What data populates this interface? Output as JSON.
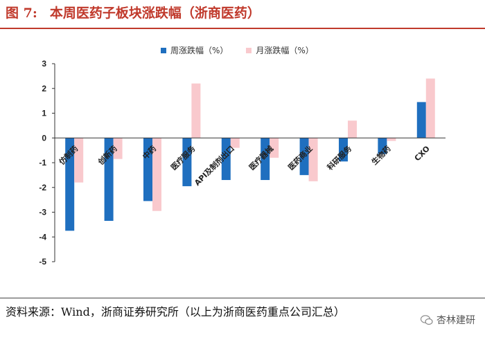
{
  "figure": {
    "number": "图 7:",
    "title": "本周医药子板块涨跌幅（浙商医药）"
  },
  "source_note": "资料来源：Wind，浙商证券研究所（以上为浙商医药重点公司汇总）",
  "watermark": "杏林建研",
  "colors": {
    "weekly": "#1f6fbf",
    "monthly": "#f9c9cd",
    "title": "#c0392b"
  },
  "chart_data": {
    "type": "bar",
    "title": "本周医药子板块涨跌幅（浙商医药）",
    "categories": [
      "仿制药",
      "创新药",
      "中药",
      "医疗服务",
      "API及制剂出口",
      "医疗器械",
      "医药商业",
      "科研服务",
      "生物药",
      "CXO"
    ],
    "series": [
      {
        "name": "周涨跌幅（%）",
        "values": [
          -3.75,
          -3.35,
          -2.55,
          -1.95,
          -1.7,
          -1.7,
          -1.5,
          -0.95,
          -0.65,
          1.45
        ]
      },
      {
        "name": "月涨跌幅（%）",
        "values": [
          -1.8,
          -0.85,
          -2.95,
          2.2,
          -0.4,
          -0.8,
          -1.75,
          0.7,
          -0.12,
          2.4
        ]
      }
    ],
    "ylim": [
      -5,
      3
    ],
    "yticks": [
      3,
      2,
      1,
      0,
      -1,
      -2,
      -3,
      -4,
      -5
    ],
    "xlabel": "",
    "ylabel": "",
    "legend_position": "top-center"
  }
}
